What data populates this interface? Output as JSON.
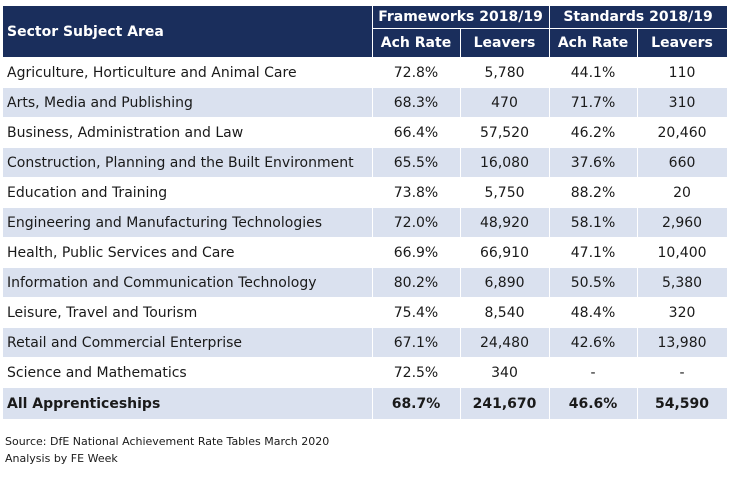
{
  "header": {
    "subject_label": "Sector Subject Area",
    "groups": [
      "Frameworks 2018/19",
      "Standards 2018/19"
    ],
    "subcolumns": [
      "Ach Rate",
      "Leavers",
      "Ach Rate",
      "Leavers"
    ]
  },
  "rows": [
    {
      "subject": "Agriculture, Horticulture and Animal Care",
      "fw_rate": "72.8%",
      "fw_leavers": "5,780",
      "st_rate": "44.1%",
      "st_leavers": "110"
    },
    {
      "subject": "Arts, Media and Publishing",
      "fw_rate": "68.3%",
      "fw_leavers": "470",
      "st_rate": "71.7%",
      "st_leavers": "310"
    },
    {
      "subject": "Business, Administration and Law",
      "fw_rate": "66.4%",
      "fw_leavers": "57,520",
      "st_rate": "46.2%",
      "st_leavers": "20,460"
    },
    {
      "subject": "Construction, Planning and the Built Environment",
      "fw_rate": "65.5%",
      "fw_leavers": "16,080",
      "st_rate": "37.6%",
      "st_leavers": "660"
    },
    {
      "subject": "Education and Training",
      "fw_rate": "73.8%",
      "fw_leavers": "5,750",
      "st_rate": "88.2%",
      "st_leavers": "20"
    },
    {
      "subject": "Engineering and Manufacturing Technologies",
      "fw_rate": "72.0%",
      "fw_leavers": "48,920",
      "st_rate": "58.1%",
      "st_leavers": "2,960"
    },
    {
      "subject": "Health, Public Services and Care",
      "fw_rate": "66.9%",
      "fw_leavers": "66,910",
      "st_rate": "47.1%",
      "st_leavers": "10,400"
    },
    {
      "subject": "Information and Communication Technology",
      "fw_rate": "80.2%",
      "fw_leavers": "6,890",
      "st_rate": "50.5%",
      "st_leavers": "5,380"
    },
    {
      "subject": "Leisure, Travel and Tourism",
      "fw_rate": "75.4%",
      "fw_leavers": "8,540",
      "st_rate": "48.4%",
      "st_leavers": "320"
    },
    {
      "subject": "Retail and Commercial Enterprise",
      "fw_rate": "67.1%",
      "fw_leavers": "24,480",
      "st_rate": "42.6%",
      "st_leavers": "13,980"
    },
    {
      "subject": "Science and Mathematics",
      "fw_rate": "72.5%",
      "fw_leavers": "340",
      "st_rate": "-",
      "st_leavers": "-"
    }
  ],
  "total": {
    "subject": "All Apprenticeships",
    "fw_rate": "68.7%",
    "fw_leavers": "241,670",
    "st_rate": "46.6%",
    "st_leavers": "54,590"
  },
  "footer": {
    "source": "Source: DfE National Achievement Rate Tables March 2020",
    "analysis": "Analysis by FE Week"
  }
}
